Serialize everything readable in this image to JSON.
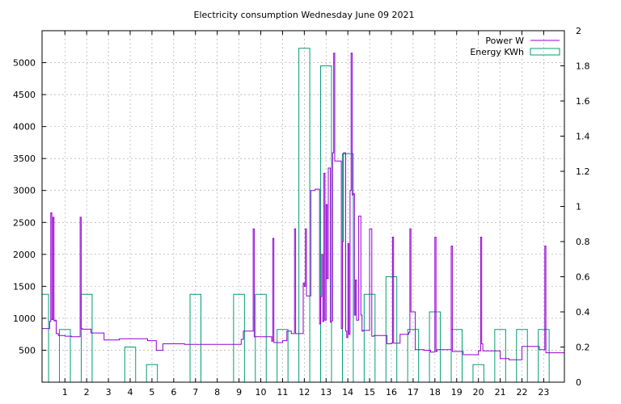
{
  "chart_data": {
    "type": "line",
    "title": "Electricity consumption Wednesday June 09 2021",
    "xlabel": "",
    "ylabel": "",
    "y2label": "",
    "xlim": [
      -0.05,
      23.95
    ],
    "ylim": [
      0,
      5500
    ],
    "y2lim": [
      0,
      2
    ],
    "x_ticks": [
      1,
      2,
      3,
      4,
      5,
      6,
      7,
      8,
      9,
      10,
      11,
      12,
      13,
      14,
      15,
      16,
      17,
      18,
      19,
      20,
      21,
      22,
      23
    ],
    "y_ticks": [
      500,
      1000,
      1500,
      2000,
      2500,
      3000,
      3500,
      4000,
      4500,
      5000
    ],
    "y2_ticks": [
      0,
      0.2,
      0.4,
      0.6,
      0.8,
      1,
      1.2,
      1.4,
      1.6,
      1.8,
      2
    ],
    "y2_tick_labels": [
      "0",
      "0.2",
      "0.4",
      "0.6",
      "0.8",
      "1",
      "1.2",
      "1.4",
      "1.6",
      "1.8",
      "2"
    ],
    "grid": true,
    "legend_position": "top-right",
    "colors": {
      "power": "#9400d3",
      "energy": "#009e73",
      "grid": "#a0a0a0"
    },
    "series": [
      {
        "name": "Power W",
        "type": "step-line",
        "axis": "y",
        "x": [
          -0.05,
          0.3,
          0.35,
          0.4,
          0.45,
          0.5,
          0.55,
          0.6,
          0.7,
          1.0,
          1.3,
          1.7,
          1.75,
          1.8,
          2.2,
          2.8,
          3.5,
          4.5,
          4.8,
          5.2,
          5.5,
          6.5,
          7.0,
          8.0,
          9.0,
          9.1,
          9.2,
          9.6,
          9.65,
          9.7,
          10.3,
          10.5,
          10.55,
          10.6,
          11.0,
          11.2,
          11.4,
          11.5,
          11.55,
          11.6,
          11.9,
          11.95,
          12.0,
          12.05,
          12.1,
          12.3,
          12.5,
          12.7,
          12.75,
          12.8,
          12.85,
          12.9,
          12.95,
          13.0,
          13.05,
          13.1,
          13.2,
          13.25,
          13.3,
          13.35,
          13.4,
          13.5,
          13.7,
          13.75,
          13.8,
          13.9,
          13.95,
          14.0,
          14.05,
          14.1,
          14.15,
          14.2,
          14.25,
          14.3,
          14.35,
          14.4,
          14.5,
          14.6,
          14.65,
          14.7,
          15.0,
          15.1,
          15.15,
          15.2,
          15.8,
          16.0,
          16.05,
          16.1,
          16.4,
          16.6,
          16.8,
          16.85,
          16.9,
          17.1,
          17.5,
          17.8,
          18.0,
          18.05,
          18.1,
          18.6,
          18.75,
          18.8,
          19.3,
          20.0,
          20.1,
          20.15,
          20.2,
          20.6,
          21.0,
          21.4,
          21.8,
          22.0,
          22.5,
          22.8,
          23.0,
          23.05,
          23.1,
          23.5,
          23.95
        ],
        "values": [
          840,
          950,
          2650,
          980,
          2580,
          960,
          970,
          760,
          730,
          720,
          710,
          2580,
          840,
          830,
          770,
          660,
          680,
          680,
          650,
          500,
          600,
          590,
          590,
          590,
          590,
          670,
          800,
          800,
          2400,
          710,
          710,
          640,
          2250,
          620,
          650,
          800,
          760,
          760,
          2400,
          760,
          760,
          1550,
          1500,
          2400,
          1350,
          3000,
          3020,
          910,
          1340,
          2000,
          950,
          3270,
          970,
          2780,
          1620,
          3350,
          940,
          960,
          3590,
          5150,
          3460,
          3460,
          840,
          2200,
          3590,
          800,
          700,
          2170,
          750,
          3000,
          5150,
          2930,
          2950,
          1050,
          1600,
          970,
          2600,
          1050,
          800,
          810,
          2400,
          720,
          720,
          730,
          600,
          610,
          2270,
          610,
          750,
          750,
          780,
          2400,
          1100,
          510,
          500,
          470,
          2270,
          480,
          510,
          510,
          2130,
          480,
          430,
          490,
          2270,
          600,
          490,
          490,
          370,
          350,
          350,
          560,
          560,
          510,
          510,
          2130,
          460,
          460,
          620
        ],
        "values_end": 620
      },
      {
        "name": "Energy KWh",
        "type": "bar",
        "axis": "y2",
        "categories": [
          0,
          1,
          2,
          3,
          4,
          5,
          6,
          7,
          8,
          9,
          10,
          11,
          12,
          13,
          14,
          15,
          16,
          17,
          18,
          19,
          20,
          21,
          22,
          23
        ],
        "values": [
          0.5,
          0.3,
          0.5,
          0,
          0.2,
          0.1,
          0,
          0.5,
          0,
          0.5,
          0.5,
          0.3,
          1.9,
          1.8,
          1.3,
          0.5,
          0.6,
          0.3,
          0.4,
          0.3,
          0.1,
          0.3,
          0.3,
          0.3
        ]
      }
    ]
  }
}
